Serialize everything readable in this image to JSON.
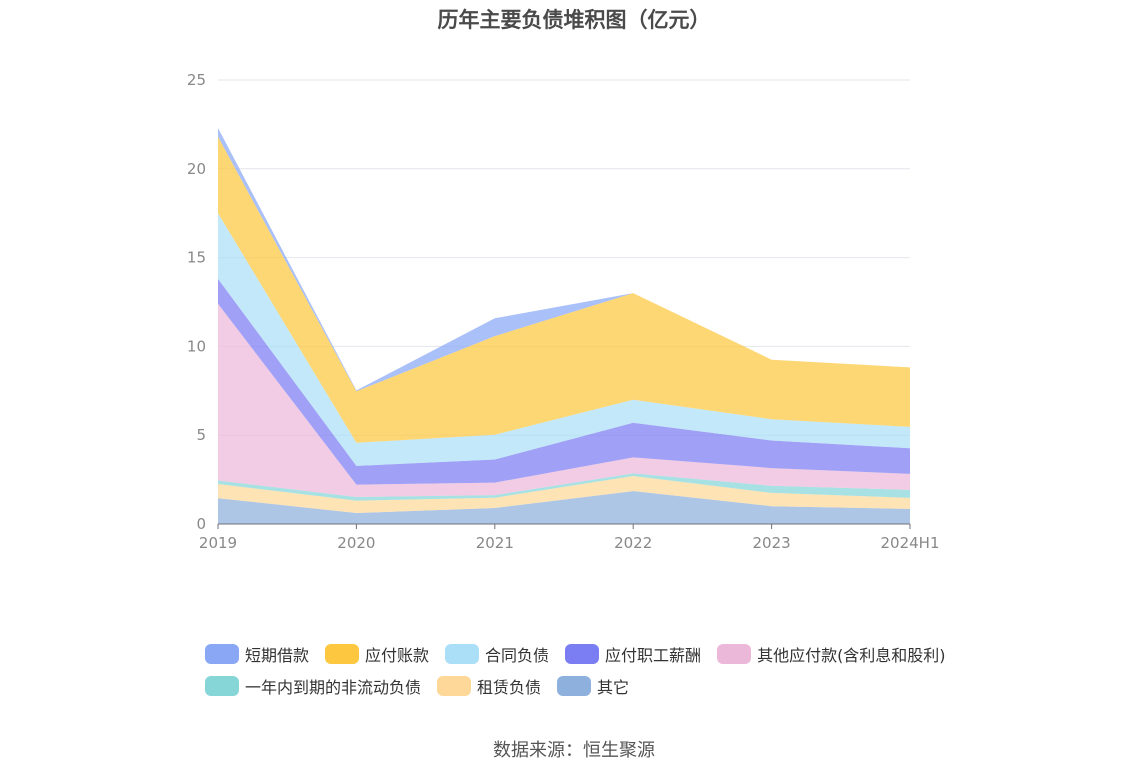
{
  "title": "历年主要负债堆积图（亿元）",
  "source": "数据来源：恒生聚源",
  "chart_data": {
    "type": "area",
    "stacked": true,
    "x": [
      "2019",
      "2020",
      "2021",
      "2022",
      "2023",
      "2024H1"
    ],
    "ylim": [
      0,
      25
    ],
    "yticks": [
      0,
      5,
      10,
      15,
      20,
      25
    ],
    "grid": true,
    "legend_position": "bottom",
    "series": [
      {
        "name": "其它",
        "color": "#8eb0dc",
        "values": [
          1.45,
          0.62,
          0.9,
          1.85,
          1.0,
          0.85
        ]
      },
      {
        "name": "租赁负债",
        "color": "#fdd898",
        "values": [
          0.8,
          0.7,
          0.58,
          0.85,
          0.75,
          0.62
        ]
      },
      {
        "name": "一年内到期的非流动负债",
        "color": "#86d6d8",
        "values": [
          0.2,
          0.2,
          0.15,
          0.15,
          0.4,
          0.45
        ]
      },
      {
        "name": "其他应付款(含利息和股利)",
        "color": "#ecb8da",
        "values": [
          9.95,
          0.7,
          0.7,
          0.9,
          1.0,
          0.9
        ]
      },
      {
        "name": "应付职工薪酬",
        "color": "#7b7df2",
        "values": [
          1.4,
          1.05,
          1.3,
          1.95,
          1.55,
          1.45
        ]
      },
      {
        "name": "合同负债",
        "color": "#aadff7",
        "values": [
          3.7,
          1.3,
          1.4,
          1.3,
          1.2,
          1.2
        ]
      },
      {
        "name": "应付账款",
        "color": "#fdc840",
        "values": [
          4.3,
          2.9,
          5.55,
          6.0,
          3.35,
          3.35
        ]
      },
      {
        "name": "短期借款",
        "color": "#89a7f5",
        "values": [
          0.5,
          0.05,
          1.0,
          0.0,
          0.0,
          0.0
        ]
      }
    ],
    "legend_order": [
      "短期借款",
      "应付账款",
      "合同负债",
      "应付职工薪酬",
      "其他应付款(含利息和股利)",
      "一年内到期的非流动负债",
      "租赁负债",
      "其它"
    ]
  }
}
